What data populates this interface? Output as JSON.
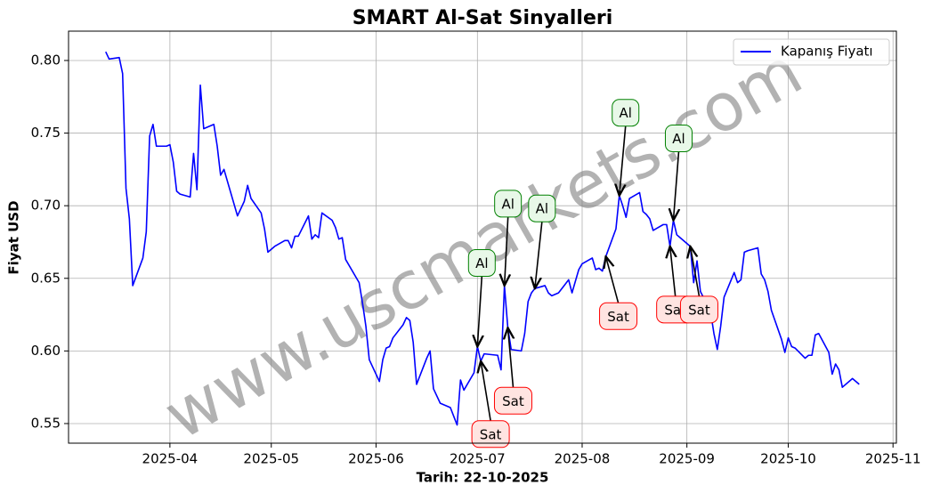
{
  "chart_data": {
    "type": "line",
    "title": "SMART Al-Sat Sinyalleri",
    "xlabel": "Tarih: 22-10-2025",
    "ylabel": "Fiyat USD",
    "watermark": "www.uscmarkets.com",
    "legend": "upper right",
    "grid": true,
    "xlim": [
      "2025-03-02",
      "2025-11-02"
    ],
    "ylim": [
      0.5365,
      0.8202
    ],
    "xticks": [
      {
        "value": "2025-04-01",
        "label": "2025-04"
      },
      {
        "value": "2025-05-01",
        "label": "2025-05"
      },
      {
        "value": "2025-06-01",
        "label": "2025-06"
      },
      {
        "value": "2025-07-01",
        "label": "2025-07"
      },
      {
        "value": "2025-08-01",
        "label": "2025-08"
      },
      {
        "value": "2025-09-01",
        "label": "2025-09"
      },
      {
        "value": "2025-10-01",
        "label": "2025-10"
      },
      {
        "value": "2025-11-01",
        "label": "2025-11"
      }
    ],
    "yticks": [
      0.55,
      {
        "value": 0.6,
        "label": "0.60"
      },
      0.65,
      {
        "value": 0.7,
        "label": "0.70"
      },
      0.75,
      {
        "value": 0.8,
        "label": "0.80"
      }
    ],
    "series": [
      {
        "name": "Kapanış Fiyatı",
        "color": "#0000ff",
        "x": [
          "2025-03-13",
          "2025-03-14",
          "2025-03-17",
          "2025-03-18",
          "2025-03-19",
          "2025-03-20",
          "2025-03-21",
          "2025-03-24",
          "2025-03-25",
          "2025-03-26",
          "2025-03-27",
          "2025-03-28",
          "2025-03-31",
          "2025-04-01",
          "2025-04-02",
          "2025-04-03",
          "2025-04-04",
          "2025-04-07",
          "2025-04-08",
          "2025-04-09",
          "2025-04-10",
          "2025-04-11",
          "2025-04-14",
          "2025-04-15",
          "2025-04-16",
          "2025-04-17",
          "2025-04-21",
          "2025-04-22",
          "2025-04-23",
          "2025-04-24",
          "2025-04-25",
          "2025-04-28",
          "2025-04-29",
          "2025-04-30",
          "2025-05-01",
          "2025-05-02",
          "2025-05-05",
          "2025-05-06",
          "2025-05-07",
          "2025-05-08",
          "2025-05-09",
          "2025-05-12",
          "2025-05-13",
          "2025-05-14",
          "2025-05-15",
          "2025-05-16",
          "2025-05-19",
          "2025-05-20",
          "2025-05-21",
          "2025-05-22",
          "2025-05-23",
          "2025-05-27",
          "2025-05-28",
          "2025-05-29",
          "2025-05-30",
          "2025-06-02",
          "2025-06-03",
          "2025-06-04",
          "2025-06-05",
          "2025-06-06",
          "2025-06-09",
          "2025-06-10",
          "2025-06-11",
          "2025-06-12",
          "2025-06-13",
          "2025-06-16",
          "2025-06-17",
          "2025-06-18",
          "2025-06-20",
          "2025-06-23",
          "2025-06-24",
          "2025-06-25",
          "2025-06-26",
          "2025-06-27",
          "2025-06-30",
          "2025-07-01",
          "2025-07-02",
          "2025-07-03",
          "2025-07-07",
          "2025-07-08",
          "2025-07-09",
          "2025-07-10",
          "2025-07-11",
          "2025-07-14",
          "2025-07-15",
          "2025-07-16",
          "2025-07-17",
          "2025-07-18",
          "2025-07-21",
          "2025-07-22",
          "2025-07-23",
          "2025-07-24",
          "2025-07-25",
          "2025-07-28",
          "2025-07-29",
          "2025-07-30",
          "2025-07-31",
          "2025-08-01",
          "2025-08-04",
          "2025-08-05",
          "2025-08-06",
          "2025-08-07",
          "2025-08-08",
          "2025-08-11",
          "2025-08-12",
          "2025-08-13",
          "2025-08-14",
          "2025-08-15",
          "2025-08-18",
          "2025-08-19",
          "2025-08-20",
          "2025-08-21",
          "2025-08-22",
          "2025-08-25",
          "2025-08-26",
          "2025-08-27",
          "2025-08-28",
          "2025-08-29",
          "2025-09-02",
          "2025-09-03",
          "2025-09-04",
          "2025-09-05",
          "2025-09-08",
          "2025-09-09",
          "2025-09-10",
          "2025-09-11",
          "2025-09-12",
          "2025-09-15",
          "2025-09-16",
          "2025-09-17",
          "2025-09-18",
          "2025-09-19",
          "2025-09-22",
          "2025-09-23",
          "2025-09-24",
          "2025-09-25",
          "2025-09-26",
          "2025-09-29",
          "2025-09-30",
          "2025-10-01",
          "2025-10-02",
          "2025-10-03",
          "2025-10-06",
          "2025-10-07",
          "2025-10-08",
          "2025-10-09",
          "2025-10-10",
          "2025-10-13",
          "2025-10-14",
          "2025-10-15",
          "2025-10-16",
          "2025-10-17",
          "2025-10-20",
          "2025-10-21",
          "2025-10-22"
        ],
        "values": [
          0.806,
          0.801,
          0.802,
          0.791,
          0.712,
          0.691,
          0.645,
          0.664,
          0.682,
          0.748,
          0.756,
          0.741,
          0.741,
          0.742,
          0.73,
          0.71,
          0.708,
          0.706,
          0.736,
          0.711,
          0.783,
          0.753,
          0.756,
          0.741,
          0.721,
          0.725,
          0.693,
          0.698,
          0.703,
          0.714,
          0.705,
          0.695,
          0.684,
          0.668,
          0.67,
          0.672,
          0.676,
          0.676,
          0.671,
          0.679,
          0.679,
          0.693,
          0.677,
          0.68,
          0.678,
          0.695,
          0.69,
          0.685,
          0.677,
          0.678,
          0.663,
          0.647,
          0.633,
          0.617,
          0.594,
          0.579,
          0.594,
          0.602,
          0.603,
          0.609,
          0.618,
          0.623,
          0.621,
          0.606,
          0.577,
          0.595,
          0.6,
          0.574,
          0.564,
          0.561,
          0.555,
          0.549,
          0.58,
          0.573,
          0.585,
          0.603,
          0.593,
          0.598,
          0.597,
          0.587,
          0.645,
          0.616,
          0.601,
          0.6,
          0.612,
          0.634,
          0.64,
          0.643,
          0.645,
          0.64,
          0.638,
          0.639,
          0.64,
          0.649,
          0.64,
          0.648,
          0.656,
          0.66,
          0.664,
          0.656,
          0.657,
          0.655,
          0.665,
          0.684,
          0.707,
          0.7,
          0.692,
          0.705,
          0.709,
          0.696,
          0.694,
          0.691,
          0.683,
          0.687,
          0.687,
          0.672,
          0.69,
          0.68,
          0.672,
          0.647,
          0.662,
          0.641,
          0.627,
          0.612,
          0.601,
          0.617,
          0.637,
          0.654,
          0.647,
          0.649,
          0.668,
          0.669,
          0.671,
          0.653,
          0.649,
          0.641,
          0.628,
          0.608,
          0.599,
          0.609,
          0.603,
          0.602,
          0.595,
          0.597,
          0.597,
          0.611,
          0.612,
          0.599,
          0.584,
          0.591,
          0.587,
          0.575,
          0.581,
          0.579,
          0.577
        ]
      }
    ],
    "annotations": [
      {
        "text": "Al",
        "x": "2025-07-01",
        "y": 0.603
      },
      {
        "text": "Al",
        "x": "2025-07-09",
        "y": 0.645
      },
      {
        "text": "Al",
        "x": "2025-07-18",
        "y": 0.643
      },
      {
        "text": "Al",
        "x": "2025-08-12",
        "y": 0.707
      },
      {
        "text": "Al",
        "x": "2025-08-28",
        "y": 0.69
      },
      {
        "text": "Sat",
        "x": "2025-07-02",
        "y": 0.593
      },
      {
        "text": "Sat",
        "x": "2025-07-10",
        "y": 0.616
      },
      {
        "text": "Sat",
        "x": "2025-08-08",
        "y": 0.665
      },
      {
        "text": "Sat",
        "x": "2025-08-27",
        "y": 0.672
      },
      {
        "text": "Sat",
        "x": "2025-09-02",
        "y": 0.672
      }
    ]
  }
}
